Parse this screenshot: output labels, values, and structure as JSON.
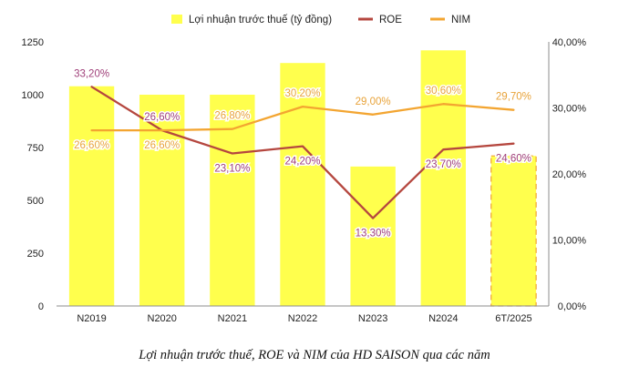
{
  "chart_data": {
    "type": "bar",
    "categories": [
      "N2019",
      "N2020",
      "N2021",
      "N2022",
      "N2023",
      "N2024",
      "6T/2025"
    ],
    "series": [
      {
        "name": "Lợi nhuận trước thuế (tỷ đồng)",
        "type": "bar",
        "axis": "left",
        "values": [
          1040,
          1000,
          1000,
          1150,
          660,
          1210,
          710
        ],
        "color": "#ffff4d",
        "projected_last": true
      },
      {
        "name": "ROE",
        "type": "line",
        "axis": "right",
        "values": [
          33.2,
          26.6,
          23.1,
          24.2,
          13.3,
          23.7,
          24.6
        ],
        "color": "#b5473f",
        "labels": [
          "33,20%",
          "26,60%",
          "23,10%",
          "24,20%",
          "13,30%",
          "23,70%",
          "24,60%"
        ],
        "label_color": "#a0407a"
      },
      {
        "name": "NIM",
        "type": "line",
        "axis": "right",
        "values": [
          26.6,
          26.6,
          26.8,
          30.2,
          29.0,
          30.6,
          29.7
        ],
        "color": "#f3a531",
        "labels": [
          "26,60%",
          "26,60%",
          "26,80%",
          "30,20%",
          "29,00%",
          "30,60%",
          "29,70%"
        ],
        "label_color": "#e8a33a"
      }
    ],
    "y_left": {
      "min": 0,
      "max": 1250,
      "ticks": [
        0,
        250,
        500,
        750,
        1000,
        1250
      ]
    },
    "y_right": {
      "min": 0,
      "max": 40,
      "ticks": [
        "0,00%",
        "10,00%",
        "20,00%",
        "30,00%",
        "40,00%"
      ],
      "tick_values": [
        0,
        10,
        20,
        30,
        40
      ]
    },
    "legend_position": "top-center",
    "grid": false
  },
  "caption": "Lợi nhuận trước thuế, ROE và NIM của HD SAISON qua các năm"
}
